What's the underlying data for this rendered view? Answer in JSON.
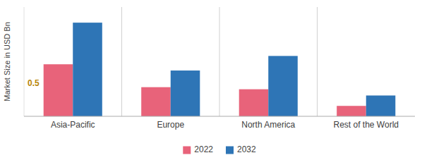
{
  "chart_data": {
    "type": "bar",
    "categories": [
      "Asia-Pacific",
      "Europe",
      "North America",
      "Rest of the World"
    ],
    "series": [
      {
        "name": "2022",
        "color": "#E8637A",
        "values": [
          0.5,
          0.28,
          0.26,
          0.1
        ]
      },
      {
        "name": "2032",
        "color": "#2E75B6",
        "values": [
          0.9,
          0.44,
          0.58,
          0.2
        ]
      }
    ],
    "y_label": "Market Size in USD Bn",
    "ylim": [
      0,
      1.05
    ],
    "annotations": [
      {
        "text": "0.5",
        "x": "Asia-Pacific",
        "color": "#B8860B"
      }
    ],
    "tick_labels": "x",
    "grid": false,
    "legend": "bottom"
  }
}
